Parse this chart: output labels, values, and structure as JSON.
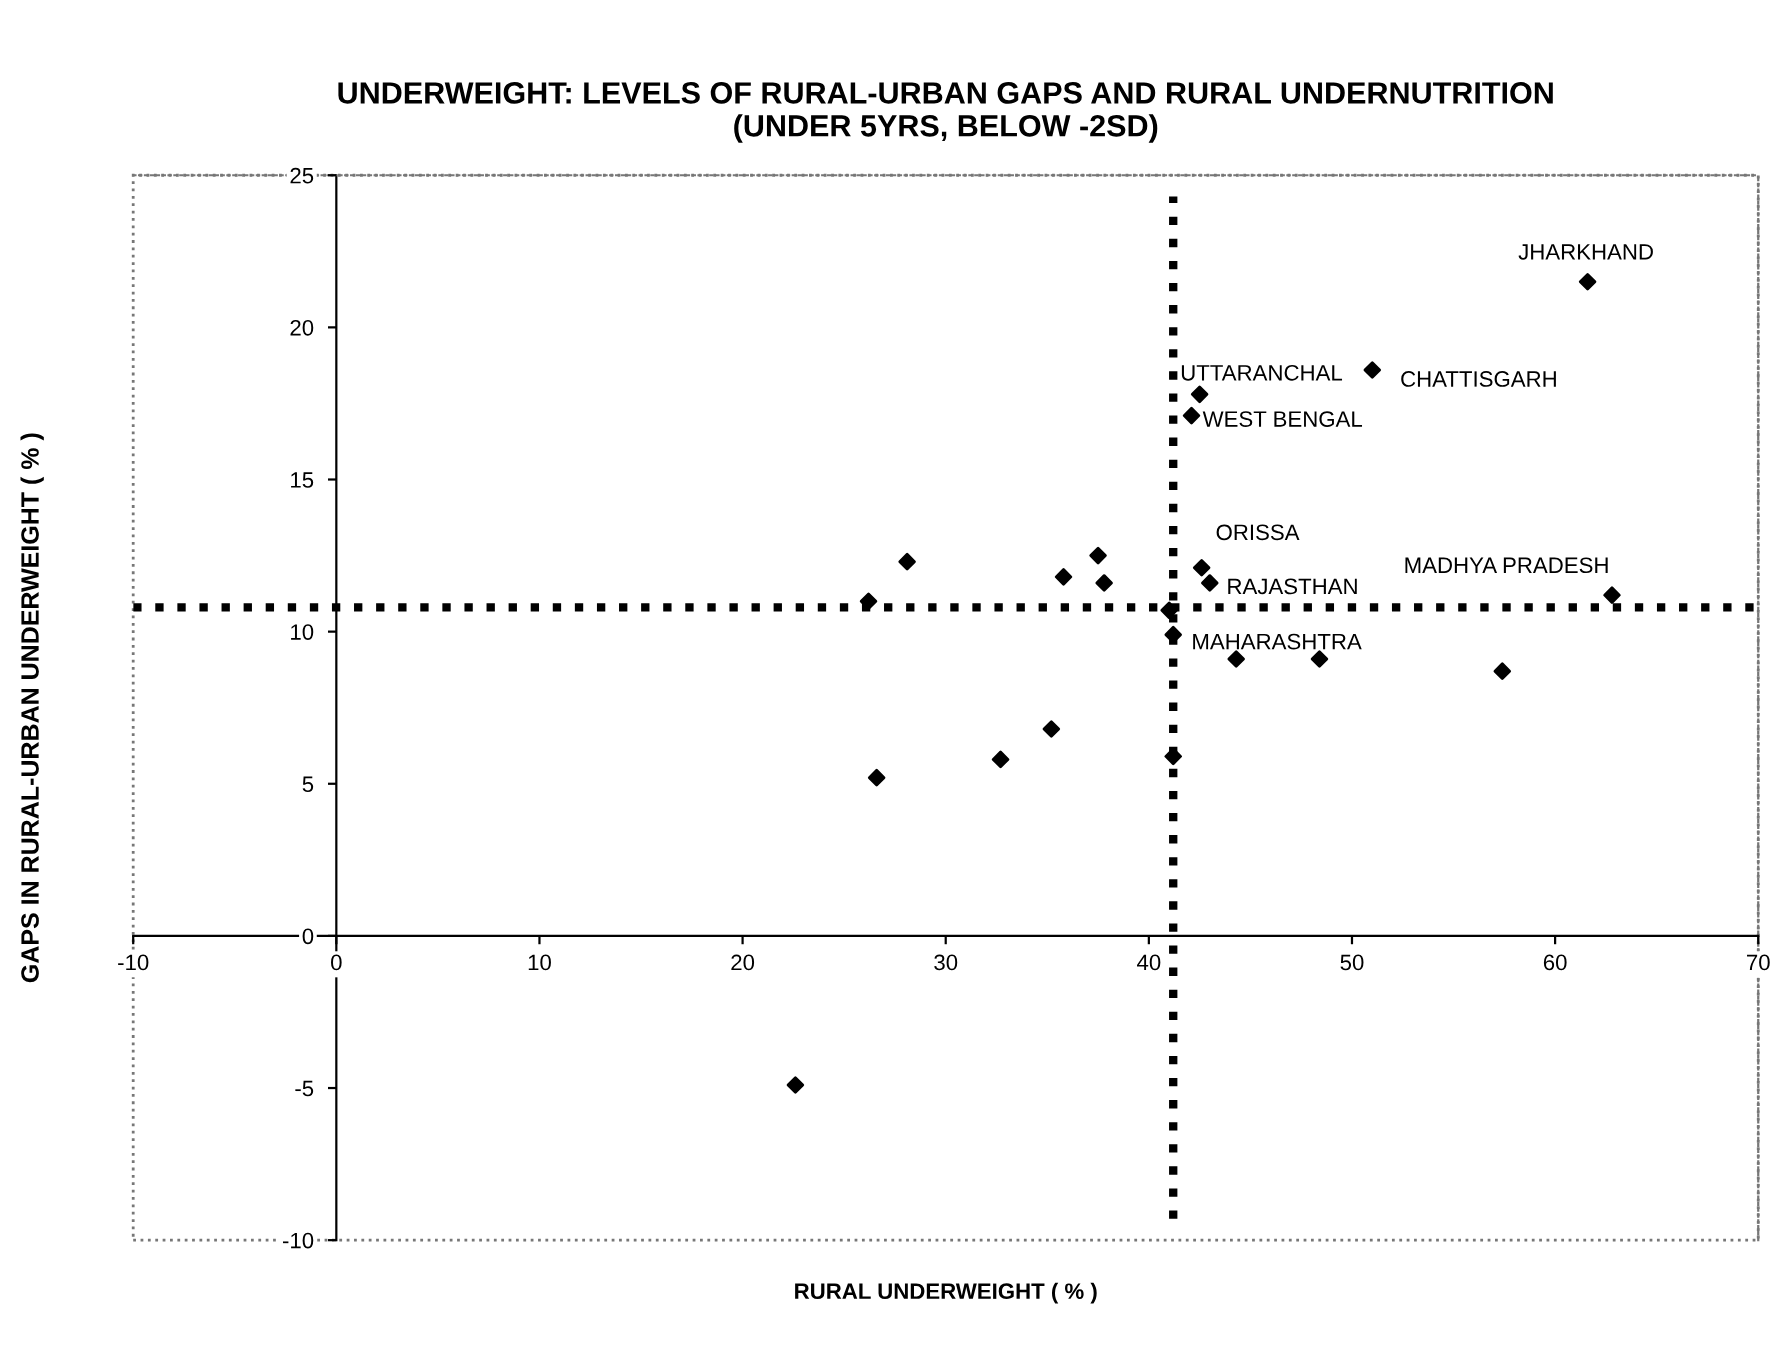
{
  "chart_data": {
    "type": "scatter",
    "title": "UNDERWEIGHT: LEVELS OF RURAL-URBAN GAPS AND RURAL UNDERNUTRITION\n(UNDER 5YRS, BELOW -2SD)",
    "xlabel": "RURAL UNDERWEIGHT ( % )",
    "ylabel": "GAPS IN RURAL-URBAN UNDERWEIGHT ( % )",
    "x": [
      61.6,
      51.0,
      42.5,
      42.1,
      42.6,
      43.0,
      41.0,
      62.8,
      26.2,
      28.1,
      26.6,
      37.5,
      35.8,
      37.8,
      41.2,
      41.2,
      44.3,
      48.4,
      57.4,
      35.2,
      32.7,
      22.6
    ],
    "series": [
      {
        "color": "#000000",
        "values": [
          21.5,
          18.6,
          17.8,
          17.1,
          12.1,
          11.6,
          10.7,
          11.2,
          11.0,
          12.3,
          5.2,
          12.5,
          11.8,
          11.6,
          9.9,
          5.9,
          9.1,
          9.1,
          8.7,
          6.8,
          5.8,
          -4.9
        ]
      }
    ],
    "marker": "diamond",
    "annotations": [
      {
        "text": "JHARKHAND",
        "x": 61.6,
        "y": 21.5
      },
      {
        "text": "CHATTISGARH",
        "x": 51.0,
        "y": 18.6
      },
      {
        "text": "UTTARANCHAL",
        "x": 42.5,
        "y": 17.8
      },
      {
        "text": "WEST BENGAL",
        "x": 42.1,
        "y": 17.1
      },
      {
        "text": "ORISSA",
        "x": 42.6,
        "y": 12.1
      },
      {
        "text": "RAJASTHAN",
        "x": 43.0,
        "y": 11.6
      },
      {
        "text": "MAHARASHTRA",
        "x": 41.0,
        "y": 10.7
      },
      {
        "text": "MADHYA PRADESH",
        "x": 62.8,
        "y": 11.2
      }
    ],
    "ref_lines": [
      {
        "axis": "x",
        "value": 41.2,
        "color": "#000000",
        "line_style": "dotted"
      },
      {
        "axis": "y",
        "value": 10.8,
        "color": "#000000",
        "line_style": "dotted"
      }
    ],
    "xlim": [
      -10,
      70
    ],
    "xticks": [
      -10,
      0,
      10,
      20,
      30,
      40,
      50,
      60,
      70
    ],
    "ylim": [
      -10,
      25
    ],
    "yticks": [
      -10,
      -5,
      0,
      5,
      10,
      15,
      20,
      25
    ],
    "grid": false,
    "legend": false
  }
}
